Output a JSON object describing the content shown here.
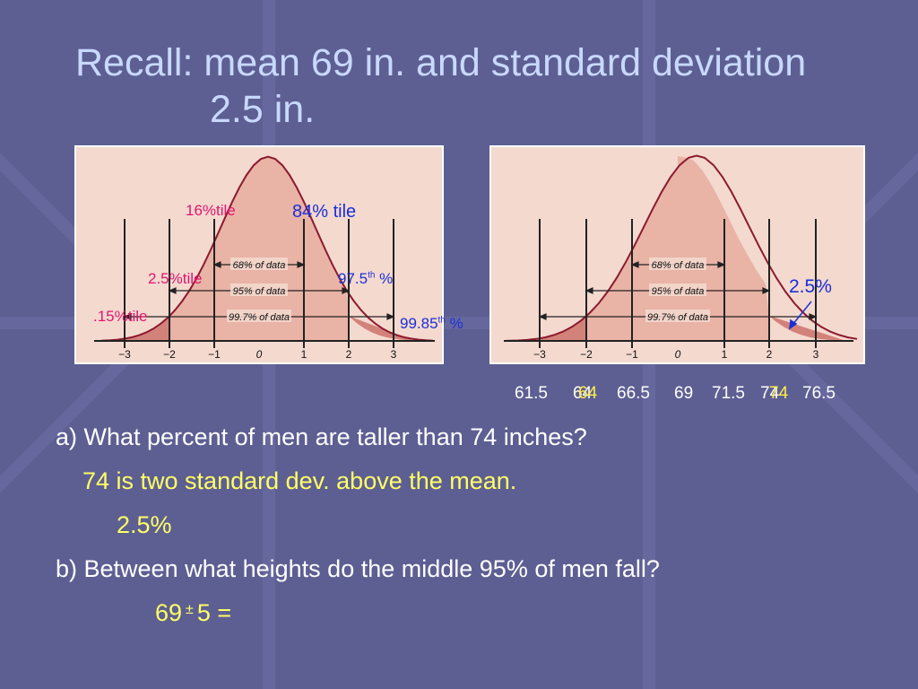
{
  "title": {
    "line1": "Recall: mean 69 in. and standard deviation",
    "line2": "2.5 in."
  },
  "left_diagram": {
    "axis_ticks": [
      "−3",
      "−2",
      "−1",
      "0",
      "1",
      "2",
      "3"
    ],
    "bands": [
      "68% of data",
      "95% of data",
      "99.7% of data"
    ],
    "labels": {
      "pct16": "16%tile",
      "pct84": "84% tile",
      "pct2_5": "2.5%tile",
      "pct97_5_num": "97.5",
      "pct97_5_sup": "th",
      "pct97_5_pct": "%",
      "pct0_15": ".15%tile",
      "pct99_85_num": "99.85",
      "pct99_85_sup": "th",
      "pct99_85_pct": "%"
    }
  },
  "right_diagram": {
    "axis_ticks": [
      "−3",
      "−2",
      "−1",
      "0",
      "1",
      "2",
      "3"
    ],
    "bands": [
      "68% of data",
      "95% of data",
      "99.7% of data"
    ],
    "tail_label": "2.5%"
  },
  "heights": {
    "h1": "61.5",
    "h2": "64",
    "h2_overlay": "64",
    "h3": "66.5",
    "h4": "69",
    "h5": "71.5",
    "h6": "74",
    "h6_overlay": "74",
    "h7": "76.5"
  },
  "question_a": "a) What percent of men are taller than 74 inches?",
  "answer_a1": "74 is two standard dev. above the mean.",
  "answer_a2": "2.5%",
  "question_b": "b) Between what heights do the middle 95% of men fall?",
  "answer_b_pre": "69",
  "answer_b_pm": "±",
  "answer_b_post": "5 =",
  "colors": {
    "background": "#5d5f93",
    "title": "#c9d8ff",
    "panel": "#f4d9cf",
    "curve": "#8c1a2e",
    "highlight": "#ffff66"
  }
}
